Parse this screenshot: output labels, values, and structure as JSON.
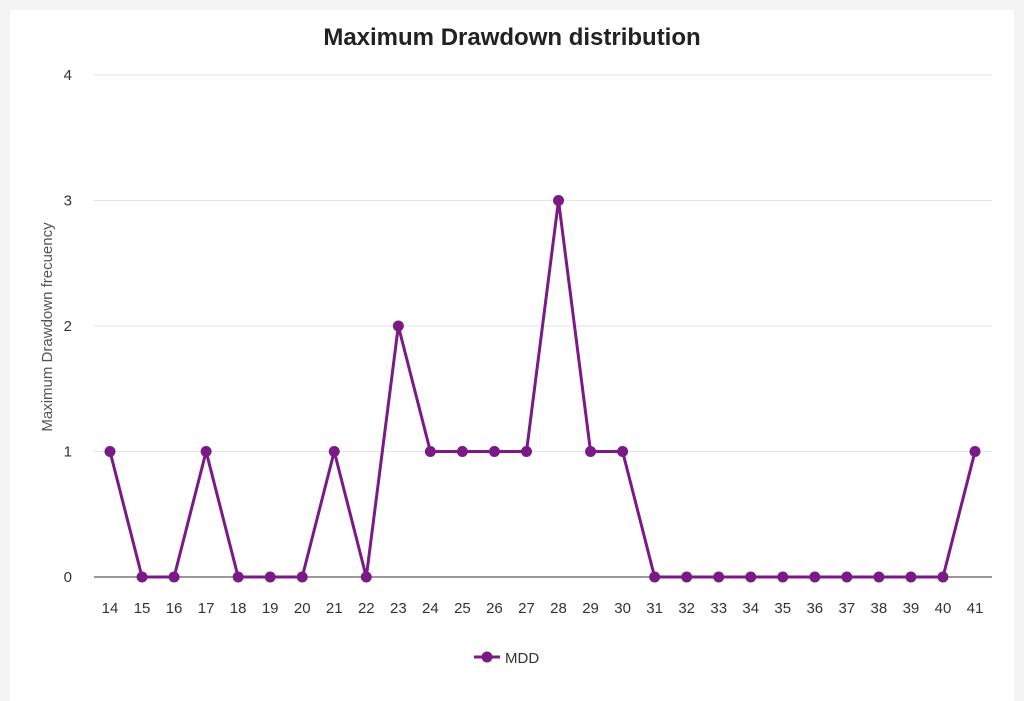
{
  "chart_data": {
    "type": "line",
    "title": "Maximum Drawdown distribution",
    "ylabel": "Maximum Drawdown frecuency",
    "xlabel": "",
    "categories": [
      "14",
      "15",
      "16",
      "17",
      "18",
      "19",
      "20",
      "21",
      "22",
      "23",
      "24",
      "25",
      "26",
      "27",
      "28",
      "29",
      "30",
      "31",
      "32",
      "33",
      "34",
      "35",
      "36",
      "37",
      "38",
      "39",
      "40",
      "41"
    ],
    "series": [
      {
        "name": "MDD",
        "color": "#7a1a86",
        "values": [
          1,
          0,
          0,
          1,
          0,
          0,
          0,
          1,
          0,
          2,
          1,
          1,
          1,
          1,
          3,
          1,
          1,
          0,
          0,
          0,
          0,
          0,
          0,
          0,
          0,
          0,
          0,
          1
        ]
      }
    ],
    "ylim": [
      0,
      4
    ],
    "yticks": [
      "0",
      "1",
      "2",
      "3",
      "4"
    ],
    "grid": true,
    "legend": "bottom-center"
  }
}
